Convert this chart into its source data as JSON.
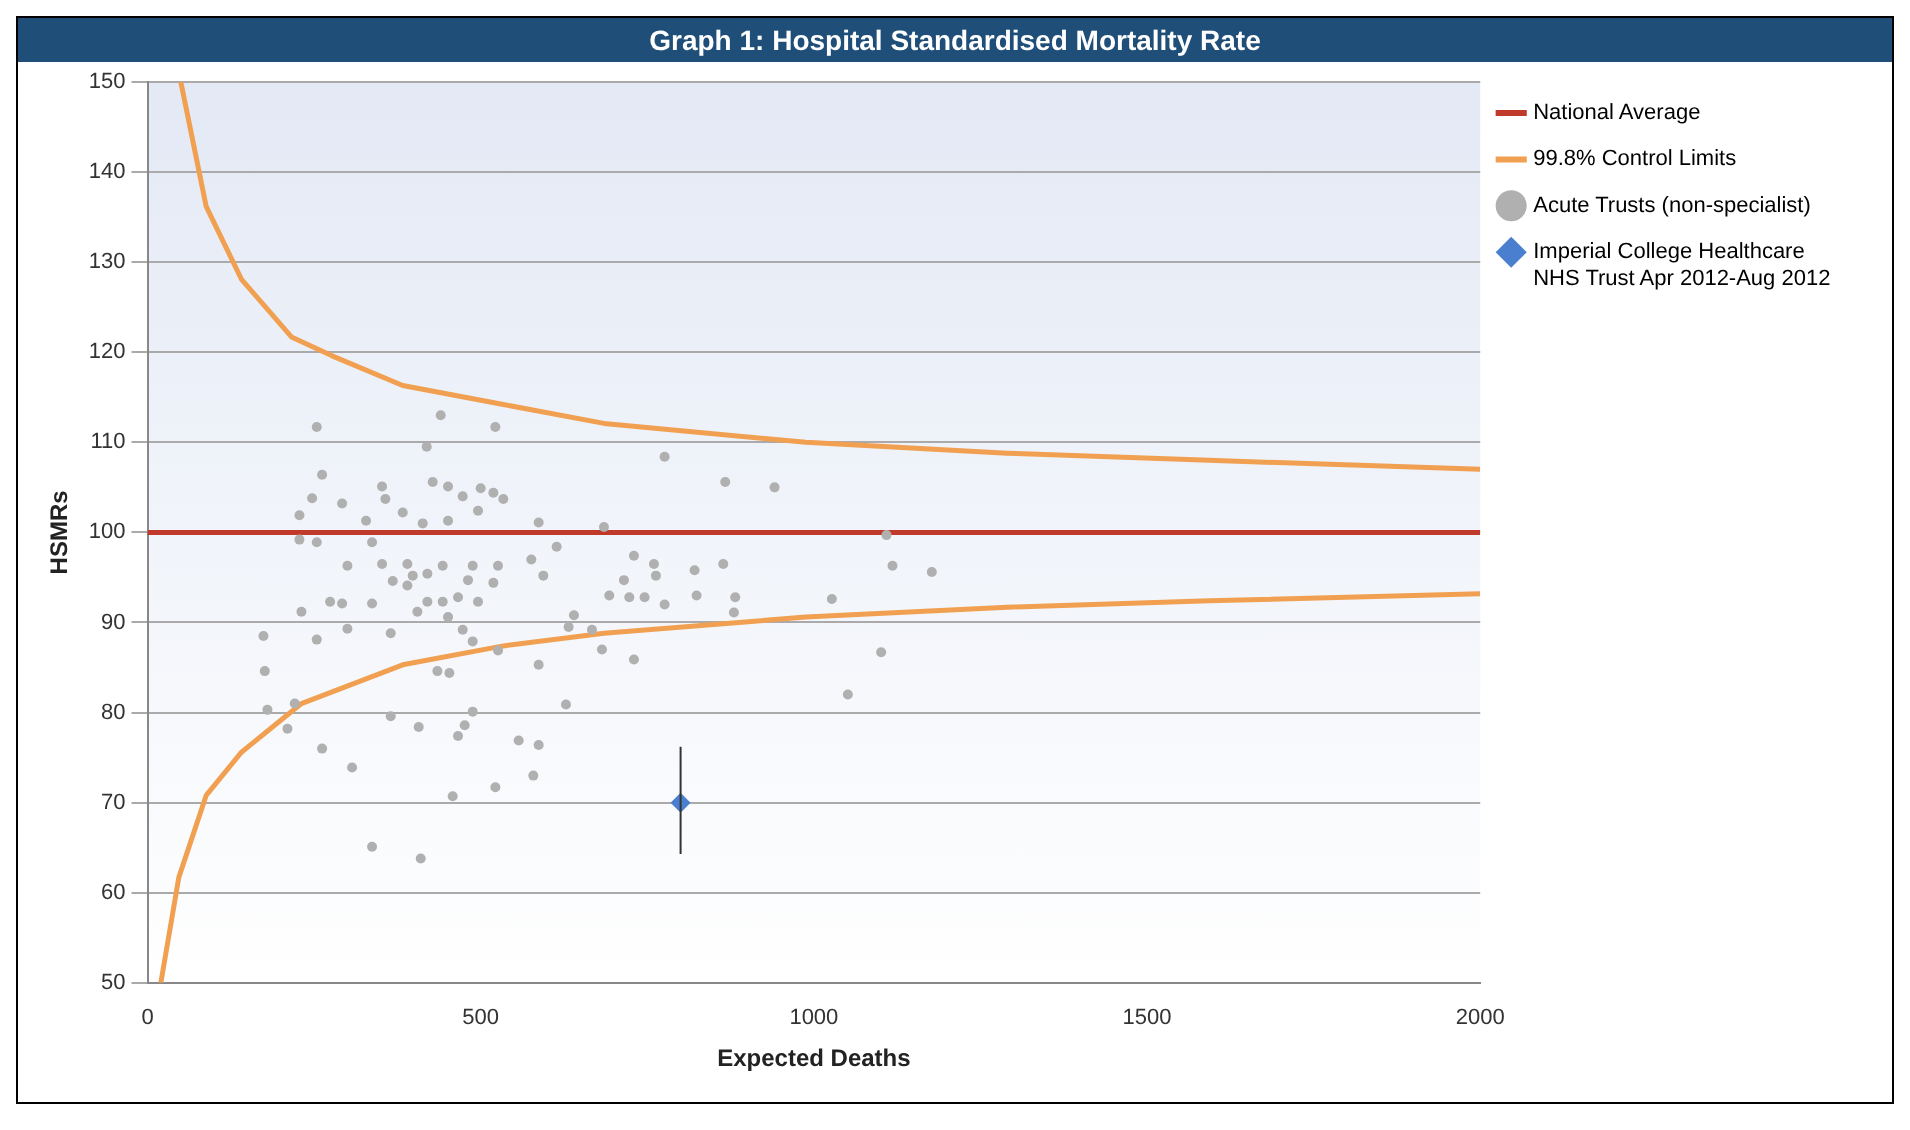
{
  "chart_data": {
    "type": "scatter",
    "title": "Graph 1: Hospital Standardised Mortality Rate",
    "xlabel": "Expected Deaths",
    "ylabel": "HSMRs",
    "xlim": [
      0,
      2000
    ],
    "xticks": [
      0,
      500,
      1000,
      1500,
      2000
    ],
    "ylim": [
      50,
      150
    ],
    "yticks": [
      50,
      60,
      70,
      80,
      90,
      100,
      110,
      120,
      130,
      140,
      150
    ],
    "grid": "y",
    "legend": "top right",
    "ref_lines": [
      {
        "axis": "y",
        "value": 100,
        "label": "National Average",
        "color": "#c0392b"
      }
    ],
    "series": [
      {
        "type": "line",
        "name": "99.8% Control Limits",
        "color": "#f0a050",
        "marker": "none",
        "x": [
          50,
          88,
          141,
          216,
          277,
          383,
          534,
          685,
          988,
          1290,
          1593,
          2000
        ],
        "values": [
          150,
          136.2,
          128.1,
          121.7,
          119.6,
          116.3,
          114.2,
          112.1,
          110,
          108.8,
          108,
          107
        ]
      },
      {
        "type": "line",
        "color": "#f0a050",
        "marker": "none",
        "x": [
          20,
          47,
          88,
          141,
          231,
          383,
          534,
          685,
          988,
          1290,
          1593,
          2000
        ],
        "values": [
          50,
          61.7,
          70.8,
          75.6,
          81,
          85.3,
          87.4,
          88.8,
          90.6,
          91.7,
          92.4,
          93.2
        ]
      },
      {
        "type": "scatter",
        "name": "Acute Trusts (non-specialist)",
        "color": "#b0b0b0",
        "marker": "circle",
        "x": [
          254,
          440,
          522,
          776,
          867,
          941,
          419,
          262,
          247,
          228,
          228,
          254,
          292,
          328,
          337,
          352,
          357,
          383,
          413,
          428,
          451,
          451,
          473,
          500,
          519,
          534,
          496,
          587,
          685,
          1109,
          300,
          352,
          390,
          443,
          488,
          526,
          614,
          576,
          594,
          730,
          760,
          821,
          864,
          1118,
          1177,
          763,
          715,
          398,
          420,
          481,
          519,
          231,
          274,
          292,
          337,
          368,
          390,
          420,
          443,
          466,
          496,
          693,
          723,
          746,
          776,
          824,
          882,
          1027,
          880,
          640,
          632,
          667,
          300,
          365,
          405,
          451,
          473,
          488,
          526,
          682,
          730,
          1101,
          174,
          254,
          176,
          587,
          435,
          453,
          628,
          180,
          221,
          365,
          488,
          476,
          407,
          466,
          210,
          262,
          557,
          587,
          579,
          307,
          522,
          458,
          337,
          410,
          1051
        ],
        "values": [
          111.7,
          113,
          111.7,
          108.4,
          105.6,
          105,
          109.5,
          106.4,
          103.8,
          101.9,
          99.2,
          98.9,
          103.2,
          101.3,
          98.9,
          105.1,
          103.7,
          102.2,
          101,
          105.6,
          105.1,
          101.3,
          104,
          104.9,
          104.4,
          103.7,
          102.4,
          101.1,
          100.6,
          99.7,
          96.3,
          96.5,
          96.5,
          96.3,
          96.3,
          96.3,
          98.4,
          97,
          95.2,
          97.4,
          96.5,
          95.8,
          96.5,
          96.3,
          95.6,
          95.2,
          94.7,
          95.2,
          95.4,
          94.7,
          94.4,
          91.2,
          92.3,
          92.1,
          92.1,
          94.6,
          94.1,
          92.3,
          92.3,
          92.8,
          92.3,
          93,
          92.8,
          92.8,
          92,
          93,
          92.8,
          92.6,
          91.1,
          90.8,
          89.5,
          89.2,
          89.3,
          88.8,
          91.2,
          90.6,
          89.2,
          87.9,
          86.9,
          87,
          85.9,
          86.7,
          88.5,
          88.1,
          84.6,
          85.3,
          84.6,
          84.4,
          80.9,
          80.3,
          81,
          79.6,
          80.1,
          78.6,
          78.4,
          77.4,
          78.2,
          76,
          76.9,
          76.4,
          73,
          73.9,
          71.7,
          70.7,
          65.1,
          63.8,
          82
        ]
      },
      {
        "type": "scatter",
        "name": "Imperial College Healthcare NHS Trust Apr 2012-Aug 2012",
        "color": "#4a7fd0",
        "marker": "diamond",
        "x": [
          800
        ],
        "values": [
          70
        ],
        "errors": [
          [
            64.3,
            76.2
          ]
        ]
      }
    ]
  }
}
